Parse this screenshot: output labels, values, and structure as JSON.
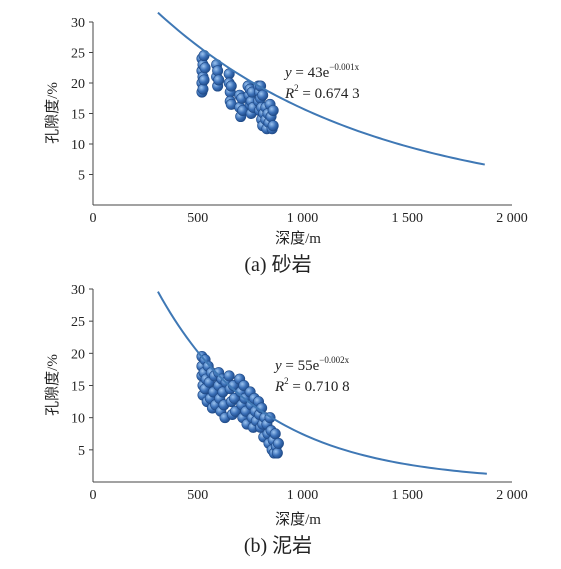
{
  "chart_data": [
    {
      "type": "scatter",
      "caption": "(a) 砂岩",
      "xlabel": "深度/m",
      "ylabel": "孔隙度/%",
      "xlim": [
        0,
        2000
      ],
      "ylim": [
        0,
        30
      ],
      "xticks": [
        "0",
        "500",
        "1 000",
        "1 500",
        "2 000"
      ],
      "yticks": [
        "5",
        "10",
        "15",
        "20",
        "25",
        "30"
      ],
      "yticks_top": "30",
      "equation": {
        "lhs": "y",
        "eq": " = 43e",
        "exp": "−0.001x"
      },
      "r2": {
        "lhs": "R",
        "sup": "2",
        "rhs": " = 0.674 3"
      },
      "fit": {
        "a": 43,
        "b": -0.001,
        "x_start": 310,
        "x_end": 1870
      },
      "point_color": "#3a6fb7",
      "line_color": "#3f78b5",
      "points": [
        [
          520,
          24
        ],
        [
          520,
          22
        ],
        [
          520,
          20
        ],
        [
          520,
          18.5
        ],
        [
          525,
          23
        ],
        [
          525,
          21
        ],
        [
          525,
          19
        ],
        [
          530,
          24.5
        ],
        [
          530,
          20.5
        ],
        [
          535,
          22.5
        ],
        [
          590,
          23
        ],
        [
          590,
          21
        ],
        [
          595,
          19.5
        ],
        [
          595,
          22
        ],
        [
          600,
          20.5
        ],
        [
          650,
          21.5
        ],
        [
          650,
          20
        ],
        [
          655,
          18.5
        ],
        [
          655,
          17
        ],
        [
          660,
          19.5
        ],
        [
          660,
          16.5
        ],
        [
          700,
          18
        ],
        [
          700,
          16
        ],
        [
          705,
          14.5
        ],
        [
          710,
          17.5
        ],
        [
          715,
          15.5
        ],
        [
          740,
          19.5
        ],
        [
          745,
          18
        ],
        [
          750,
          16.5
        ],
        [
          750,
          19
        ],
        [
          755,
          17
        ],
        [
          755,
          15
        ],
        [
          760,
          18.5
        ],
        [
          765,
          16
        ],
        [
          790,
          19.5
        ],
        [
          790,
          17
        ],
        [
          795,
          18.5
        ],
        [
          795,
          15.5
        ],
        [
          800,
          19.5
        ],
        [
          800,
          17.5
        ],
        [
          805,
          16
        ],
        [
          805,
          14
        ],
        [
          810,
          18
        ],
        [
          810,
          13
        ],
        [
          815,
          15
        ],
        [
          825,
          16
        ],
        [
          825,
          14
        ],
        [
          830,
          12.5
        ],
        [
          835,
          15
        ],
        [
          840,
          13.5
        ],
        [
          845,
          16.5
        ],
        [
          850,
          14.5
        ],
        [
          855,
          12.5
        ],
        [
          860,
          15.5
        ],
        [
          860,
          13
        ]
      ]
    },
    {
      "type": "scatter",
      "caption": "(b) 泥岩",
      "xlabel": "深度/m",
      "ylabel": "孔隙度/%",
      "xlim": [
        0,
        2000
      ],
      "ylim": [
        0,
        30
      ],
      "xticks": [
        "0",
        "500",
        "1 000",
        "1 500",
        "2 000"
      ],
      "yticks": [
        "5",
        "10",
        "15",
        "20",
        "25",
        "30"
      ],
      "equation": {
        "lhs": "y",
        "eq": " = 55e",
        "exp": "−0.002x"
      },
      "r2": {
        "lhs": "R",
        "sup": "2",
        "rhs": " = 0.710 8"
      },
      "fit": {
        "a": 55,
        "b": -0.002,
        "x_start": 310,
        "x_end": 1880
      },
      "point_color": "#3a6fb7",
      "line_color": "#3f78b5",
      "points": [
        [
          520,
          19.5
        ],
        [
          520,
          18
        ],
        [
          520,
          16.5
        ],
        [
          525,
          15
        ],
        [
          525,
          13.5
        ],
        [
          530,
          17
        ],
        [
          535,
          19
        ],
        [
          535,
          14.5
        ],
        [
          540,
          16
        ],
        [
          545,
          12.5
        ],
        [
          550,
          18
        ],
        [
          555,
          15.5
        ],
        [
          560,
          13
        ],
        [
          565,
          17
        ],
        [
          570,
          11.5
        ],
        [
          575,
          14
        ],
        [
          580,
          16.5
        ],
        [
          585,
          12
        ],
        [
          600,
          17
        ],
        [
          600,
          15
        ],
        [
          605,
          13
        ],
        [
          610,
          11
        ],
        [
          615,
          16
        ],
        [
          620,
          14
        ],
        [
          625,
          12
        ],
        [
          630,
          10
        ],
        [
          635,
          15.5
        ],
        [
          650,
          16.5
        ],
        [
          655,
          14.5
        ],
        [
          660,
          12.5
        ],
        [
          665,
          10.5
        ],
        [
          670,
          15
        ],
        [
          675,
          13
        ],
        [
          680,
          11
        ],
        [
          700,
          16
        ],
        [
          705,
          14
        ],
        [
          710,
          12
        ],
        [
          715,
          10
        ],
        [
          720,
          15
        ],
        [
          725,
          13
        ],
        [
          730,
          11
        ],
        [
          735,
          9
        ],
        [
          750,
          14
        ],
        [
          755,
          12
        ],
        [
          760,
          10
        ],
        [
          765,
          8.5
        ],
        [
          770,
          13
        ],
        [
          775,
          11
        ],
        [
          780,
          9.5
        ],
        [
          790,
          12.5
        ],
        [
          795,
          10.5
        ],
        [
          800,
          8.5
        ],
        [
          805,
          11.5
        ],
        [
          810,
          9
        ],
        [
          815,
          7
        ],
        [
          820,
          10
        ],
        [
          830,
          9
        ],
        [
          835,
          7.5
        ],
        [
          840,
          6
        ],
        [
          845,
          10
        ],
        [
          850,
          8
        ],
        [
          855,
          5
        ],
        [
          860,
          6.5
        ],
        [
          865,
          4.5
        ],
        [
          870,
          7.5
        ],
        [
          875,
          5.5
        ],
        [
          880,
          4.5
        ],
        [
          885,
          6
        ]
      ]
    }
  ]
}
